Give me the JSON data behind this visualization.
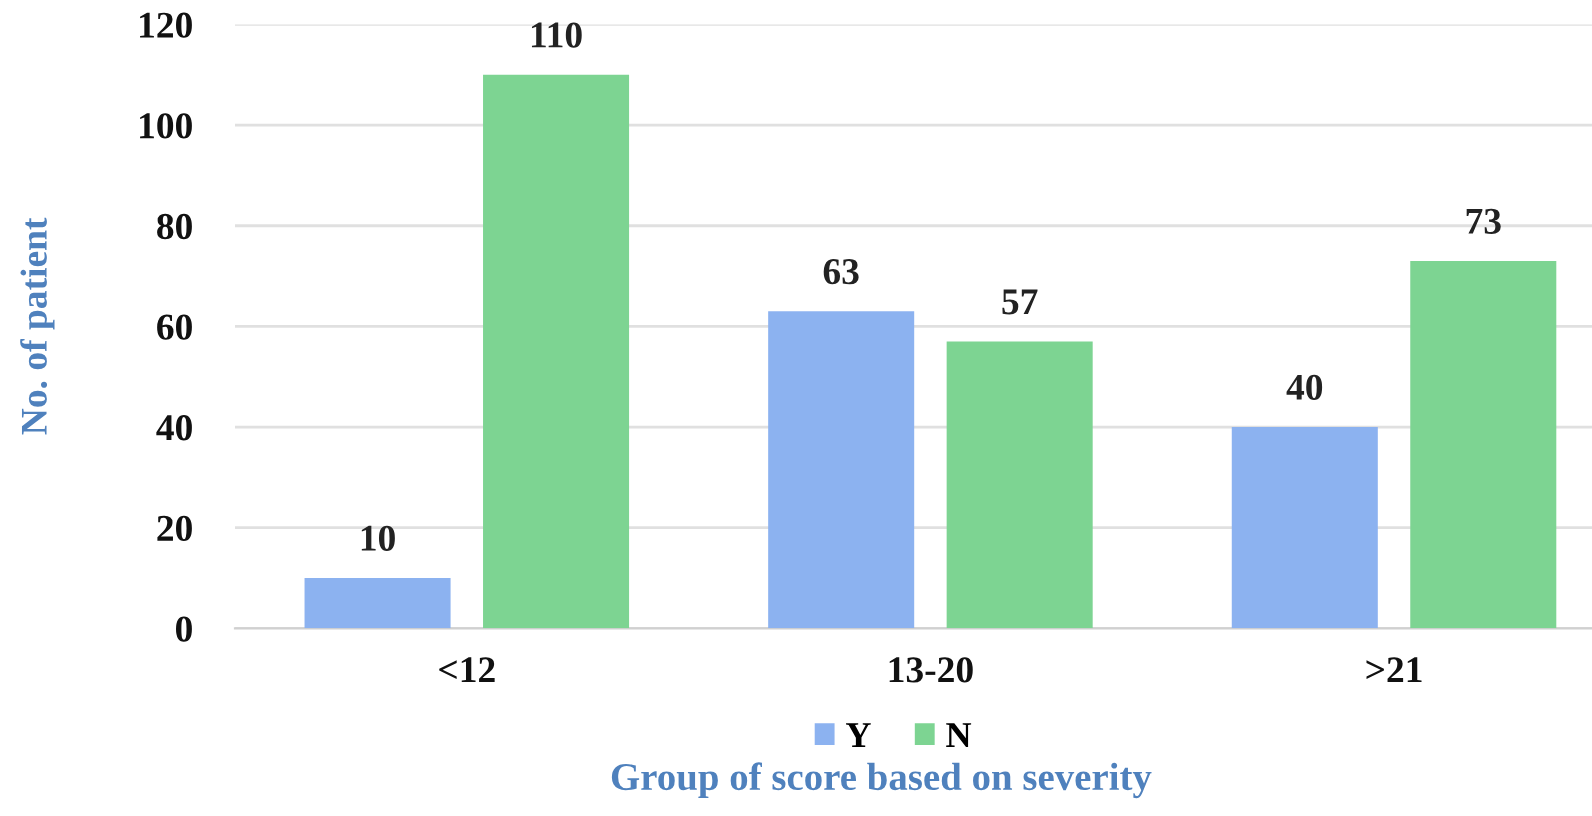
{
  "chart_data": {
    "type": "bar",
    "xlabel": "Group of score based on severity",
    "ylabel": "No. of patient",
    "categories": [
      "<12",
      "13-20",
      ">21"
    ],
    "series": [
      {
        "name": "Y",
        "color": "#8cb2f0",
        "values": [
          10,
          63,
          40
        ]
      },
      {
        "name": "N",
        "color": "#7dd492",
        "values": [
          110,
          57,
          73
        ]
      }
    ],
    "ylim": [
      0,
      120
    ],
    "yticks": [
      0,
      20,
      40,
      60,
      80,
      100,
      120
    ],
    "grid": "y",
    "legend": "bottom",
    "data_labels": true
  }
}
